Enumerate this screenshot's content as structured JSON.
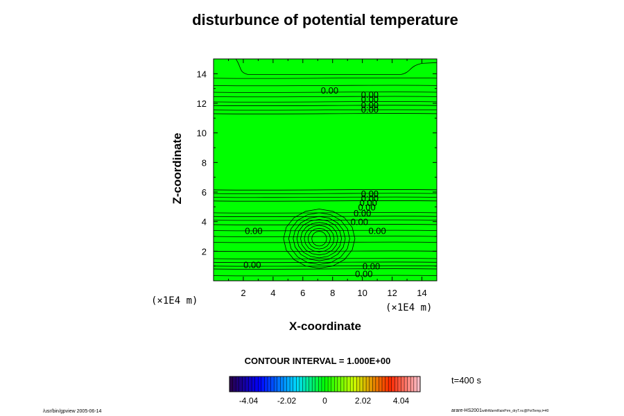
{
  "chart_data": {
    "type": "contour",
    "title": "disturbunce of potential temperature",
    "xlabel": "X-coordinate",
    "ylabel": "Z-coordinate",
    "x_unit": "(×1E4 m)",
    "y_unit": "(×1E4 m)",
    "xlim": [
      0,
      15
    ],
    "ylim": [
      0,
      15
    ],
    "x_ticks": [
      2,
      4,
      6,
      8,
      10,
      12,
      14
    ],
    "y_ticks": [
      2,
      4,
      6,
      8,
      10,
      12,
      14
    ],
    "fill_color": "#00ff00",
    "contour_interval_text": "CONTOUR INTERVAL = 1.000E+00",
    "contour_labels": [
      {
        "text": "0.00",
        "x": 7.8,
        "z": 12.9
      },
      {
        "text": "0.00",
        "x": 2.7,
        "z": 3.4
      },
      {
        "text": "0.00",
        "x": 11.0,
        "z": 3.4
      },
      {
        "text": "0.00",
        "x": 2.6,
        "z": 1.1
      },
      {
        "text": "0.00",
        "x": 9.8,
        "z": 4.0
      },
      {
        "text": "0.00",
        "x": 10.6,
        "z": 1.0
      },
      {
        "text": "0.00",
        "x": 10.1,
        "z": 0.5
      }
    ],
    "contour_labels_dense": [
      {
        "text": "0.00",
        "x": 10.5,
        "z": 12.6
      },
      {
        "text": "0.00",
        "x": 10.5,
        "z": 12.3
      },
      {
        "text": "0.00",
        "x": 10.5,
        "z": 11.9
      },
      {
        "text": "0.00",
        "x": 10.5,
        "z": 11.6
      },
      {
        "text": "0.00",
        "x": 10.5,
        "z": 5.9
      },
      {
        "text": "0.00",
        "x": 10.5,
        "z": 5.6
      },
      {
        "text": "0.00",
        "x": 10.4,
        "z": 5.3
      },
      {
        "text": "0.00",
        "x": 10.3,
        "z": 5.0
      },
      {
        "text": "0.00",
        "x": 10.0,
        "z": 4.6
      }
    ],
    "horizontal_contour_levels_z": [
      0.35,
      0.8,
      1.0,
      1.25,
      1.5,
      2.0,
      2.6,
      3.0,
      3.4,
      3.8,
      4.1,
      4.35,
      4.6,
      5.4,
      5.65,
      5.9,
      6.15,
      11.3,
      11.55,
      11.85,
      12.1,
      12.45,
      12.75,
      13.2,
      13.7
    ],
    "bubble_center": {
      "x": 7.1,
      "z": 2.85
    },
    "bubble_contours": [
      {
        "rx": 0.5,
        "rz": 0.5
      },
      {
        "rx": 0.75,
        "rz": 0.7
      },
      {
        "rx": 1.0,
        "rz": 0.9
      },
      {
        "rx": 1.25,
        "rz": 1.1
      },
      {
        "rx": 1.5,
        "rz": 1.3
      },
      {
        "rx": 1.75,
        "rz": 1.5
      },
      {
        "rx": 2.05,
        "rz": 1.75
      },
      {
        "rx": 2.4,
        "rz": 2.0
      }
    ],
    "colorbar": {
      "ticks": [
        "-4.04",
        "-2.02",
        "0",
        "2.02",
        "4.04"
      ],
      "tick_values": [
        -4.04,
        -2.02,
        0,
        2.02,
        4.04
      ],
      "range": [
        -5.05,
        5.05
      ],
      "segments": 60
    },
    "time_label": "t=400 s"
  },
  "footer": {
    "left": "/usr/bin/gpview 2005-06-14",
    "right_main": "arare-HS2001",
    "right_small": "withWarmRainPrm_dryT.nc@PotTemp,t=40"
  }
}
